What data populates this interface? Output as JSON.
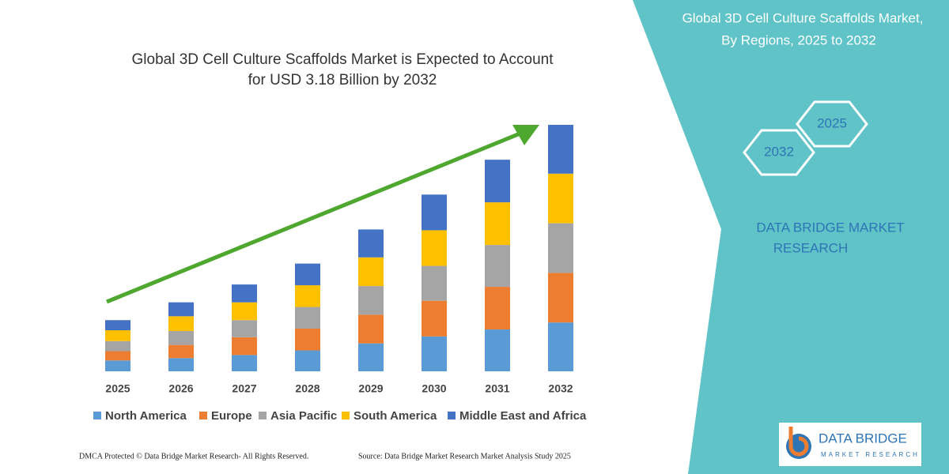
{
  "chart_data": {
    "type": "stacked-bar",
    "title": "Global 3D Cell Culture Scaffolds Market is Expected to Account for USD 3.18 Billion by 2032",
    "categories": [
      "2025",
      "2026",
      "2027",
      "2028",
      "2029",
      "2030",
      "2031",
      "2032"
    ],
    "series": [
      {
        "name": "North America",
        "color": "#5b9bd5",
        "values": [
          0.14,
          0.17,
          0.21,
          0.27,
          0.36,
          0.45,
          0.54,
          0.63
        ]
      },
      {
        "name": "Europe",
        "color": "#ed7d31",
        "values": [
          0.12,
          0.17,
          0.23,
          0.28,
          0.37,
          0.46,
          0.55,
          0.64
        ]
      },
      {
        "name": "Asia Pacific",
        "color": "#a5a5a5",
        "values": [
          0.13,
          0.18,
          0.22,
          0.28,
          0.37,
          0.45,
          0.54,
          0.64
        ]
      },
      {
        "name": "South America",
        "color": "#ffc000",
        "values": [
          0.14,
          0.19,
          0.23,
          0.28,
          0.37,
          0.46,
          0.55,
          0.64
        ]
      },
      {
        "name": "Middle East and Africa",
        "color": "#4472c4",
        "values": [
          0.13,
          0.18,
          0.23,
          0.28,
          0.36,
          0.46,
          0.55,
          0.63
        ]
      }
    ]
  },
  "side_panel": {
    "title": "Global 3D Cell Culture Scaffolds Market, By Regions, 2025 to 2032",
    "hex_start": "2025",
    "hex_end": "2032",
    "brand": "DATA BRIDGE MARKET RESEARCH"
  },
  "logo": {
    "name": "DATA BRIDGE",
    "tagline": "MARKET RESEARCH"
  },
  "footer": {
    "left": "DMCA Protected © Data Bridge Market Research- All Rights Reserved.",
    "right": "Source: Data Bridge Market Research Market Analysis Study 2025"
  }
}
